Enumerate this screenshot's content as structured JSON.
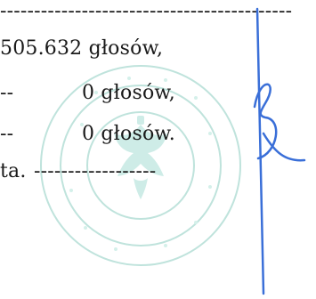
{
  "document": {
    "lines": [
      {
        "dashes": "-------------------------------------------"
      },
      {
        "text": "505.632 głosów,"
      },
      {
        "dashes": "--",
        "text": "0 głosów,"
      },
      {
        "dashes": "--",
        "text": "0 głosów."
      },
      {
        "text": "ta.",
        "dashes": "------------------"
      }
    ]
  },
  "colors": {
    "ink": "#1a1a1a",
    "seal": "#bfe3dc",
    "signature": "#3a6fd8"
  }
}
